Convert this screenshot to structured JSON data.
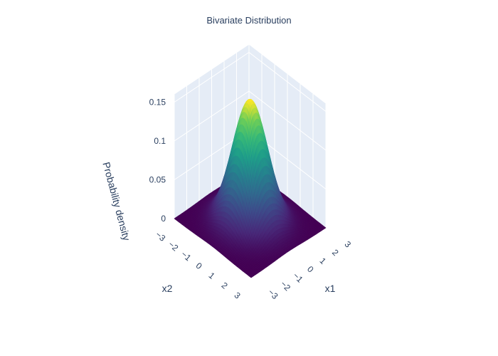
{
  "chart_data": {
    "type": "surface",
    "title": "Bivariate Distribution",
    "xlabel": "x1",
    "ylabel": "x2",
    "zlabel": "Probability density",
    "x_range": [
      -3,
      3
    ],
    "y_range": [
      -3,
      3
    ],
    "z_range": [
      0,
      0.16
    ],
    "x_ticks": [
      "3",
      "2",
      "1",
      "0",
      "−1",
      "−2",
      "−3"
    ],
    "y_ticks": [
      "−3",
      "−2",
      "−1",
      "0",
      "1",
      "2",
      "3"
    ],
    "z_ticks": [
      "0",
      "0.05",
      "0.1",
      "0.15"
    ],
    "function": "bivariate standard normal density",
    "mean": [
      0,
      0
    ],
    "sigma": [
      1,
      1
    ],
    "peak_z": 0.159,
    "colorscale": "Viridis",
    "colors": {
      "low": "#440154",
      "mid": "#21918c",
      "high": "#fde725",
      "pane": "#e5ecf6",
      "grid": "#ffffff",
      "text": "#2a3f5f"
    },
    "grid": true
  }
}
